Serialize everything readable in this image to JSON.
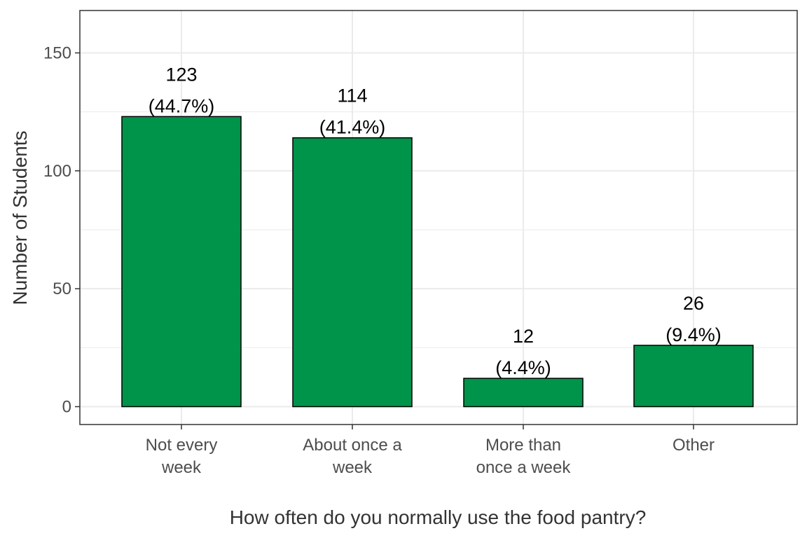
{
  "chart_data": {
    "type": "bar",
    "title": "",
    "xlabel": "How often do you normally use the food pantry?",
    "ylabel": "Number of Students",
    "categories": [
      "Not every\nweek",
      "About once a\nweek",
      "More than\nonce a week",
      "Other"
    ],
    "values": [
      123,
      114,
      12,
      26
    ],
    "data_labels": [
      "123\n(44.7%)",
      "114\n(41.4%)",
      "12\n(4.4%)",
      "26\n(9.4%)"
    ],
    "y_ticks": [
      0,
      50,
      100,
      150
    ],
    "ylim": [
      0,
      168
    ],
    "grid": true,
    "legend": "none",
    "colors": {
      "bar_fill": "#00934A",
      "bar_stroke": "#000000",
      "grid": "#ebebeb",
      "panel_border": "#333333"
    }
  }
}
